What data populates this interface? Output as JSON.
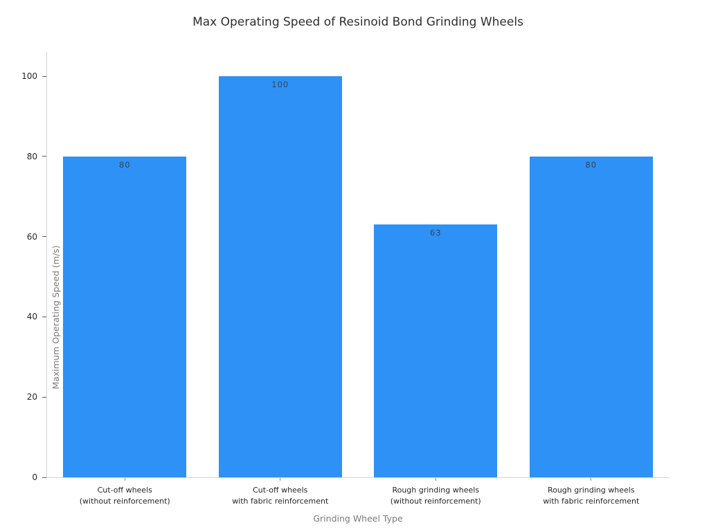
{
  "chart_data": {
    "type": "bar",
    "title": "Max Operating Speed of Resinoid Bond Grinding Wheels",
    "categories": [
      "Cut-off wheels\n(without reinforcement)",
      "Cut-off wheels\nwith fabric reinforcement",
      "Rough grinding wheels\n(without reinforcement)",
      "Rough grinding wheels\nwith fabric reinforcement"
    ],
    "values": [
      80,
      100,
      63,
      80
    ],
    "bar_labels": [
      "80",
      "100",
      "63",
      "80"
    ],
    "xlabel": "Grinding Wheel Type",
    "ylabel": "Maximum Operating Speed (m/s)",
    "ylim": [
      0,
      106
    ],
    "yticks": [
      0,
      20,
      40,
      60,
      80,
      100
    ],
    "grid": false,
    "legend": "none",
    "colors": {
      "bar": "#2E91F5",
      "bar_value_label": "#37474F",
      "spine": "#D0D3D6",
      "tick_label": "#262626",
      "axis_title": "#7A7A7A",
      "chart_title": "#2E2E2E",
      "background": "#FFFFFF"
    }
  }
}
